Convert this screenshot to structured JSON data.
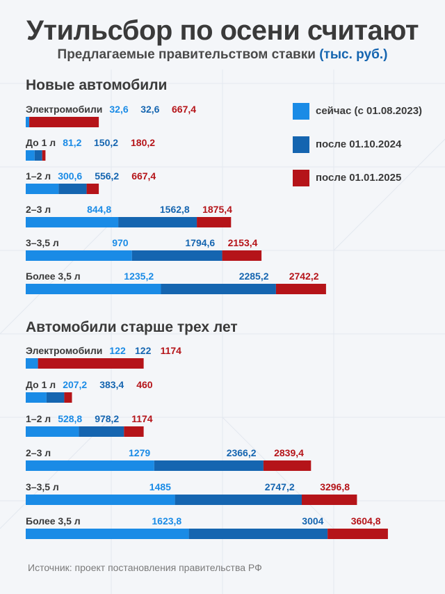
{
  "title": "Утильсбор по осени считают",
  "subtitle": "Предлагаемые правительством ставки",
  "subtitle_unit": "(тыс. руб.)",
  "source": "Источник: проект постановления правительства РФ",
  "colors": {
    "now": "#1a8be6",
    "oct2024": "#1565b0",
    "jan2025": "#b51419",
    "label_now": "#1a8be6",
    "label_oct2024": "#1565b0",
    "label_jan2025": "#b51419",
    "text": "#3a3a3a"
  },
  "legend": [
    {
      "key": "now",
      "label": "сейчас (с 01.08.2023)"
    },
    {
      "key": "oct2024",
      "label": "после 01.10.2024"
    },
    {
      "key": "jan2025",
      "label": "после 01.01.2025"
    }
  ],
  "chart_data": [
    {
      "type": "bar",
      "title": "Новые автомобили",
      "categories": [
        "Электромобили",
        "До 1 л",
        "1–2 л",
        "2–3 л",
        "3–3,5 л",
        "Более 3,5 л"
      ],
      "series": [
        {
          "name": "сейчас (с 01.08.2023)",
          "values": [
            32.6,
            81.2,
            300.6,
            844.8,
            970,
            1235.2
          ],
          "labels": [
            "32,6",
            "81,2",
            "300,6",
            "844,8",
            "970",
            "1235,2"
          ]
        },
        {
          "name": "после 01.10.2024",
          "values": [
            32.6,
            150.2,
            556.2,
            1562.8,
            1794.6,
            2285.2
          ],
          "labels": [
            "32,6",
            "150,2",
            "556,2",
            "1562,8",
            "1794,6",
            "2285,2"
          ]
        },
        {
          "name": "после 01.01.2025",
          "values": [
            667.4,
            180.2,
            667.4,
            1875.4,
            2153.4,
            2742.2
          ],
          "labels": [
            "667,4",
            "180,2",
            "667,4",
            "1875,4",
            "2153,4",
            "2742,2"
          ]
        }
      ]
    },
    {
      "type": "bar",
      "title": "Автомобили старше трех лет",
      "categories": [
        "Электромобили",
        "До 1 л",
        "1–2 л",
        "2–3 л",
        "3–3,5 л",
        "Более 3,5 л"
      ],
      "series": [
        {
          "name": "сейчас (с 01.08.2023)",
          "values": [
            122,
            207.2,
            528.8,
            1279,
            1485,
            1623.8
          ],
          "labels": [
            "122",
            "207,2",
            "528,8",
            "1279",
            "1485",
            "1623,8"
          ]
        },
        {
          "name": "после 01.10.2024",
          "values": [
            122,
            383.4,
            978.2,
            2366.2,
            2747.2,
            3004
          ],
          "labels": [
            "122",
            "383,4",
            "978,2",
            "2366,2",
            "2747,2",
            "3004"
          ]
        },
        {
          "name": "после 01.01.2025",
          "values": [
            1174,
            460,
            1174,
            2839.4,
            3296.8,
            3604.8
          ],
          "labels": [
            "1174",
            "460",
            "1174",
            "2839,4",
            "3296,8",
            "3604,8"
          ]
        }
      ]
    }
  ]
}
